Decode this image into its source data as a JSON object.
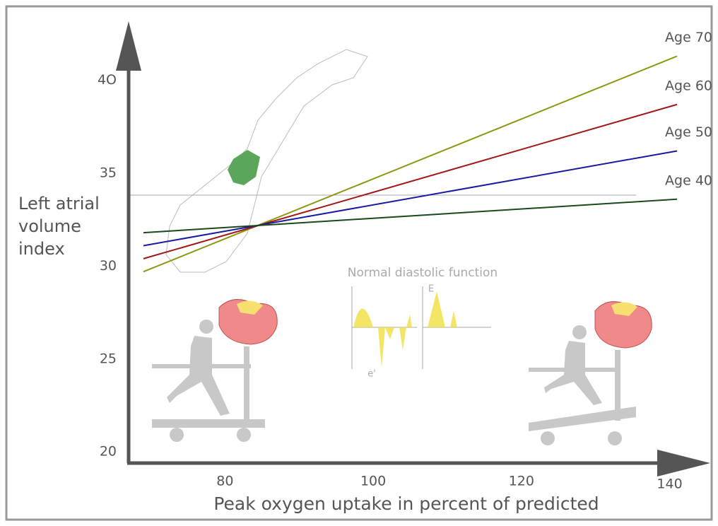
{
  "chart_data": {
    "type": "line",
    "x_label": "Peak oxygen uptake in percent of predicted",
    "y_label": "Left atrial volume index",
    "annotations": [
      "Normal diastolic function",
      "E",
      "e'"
    ],
    "x": [
      69,
      141
    ],
    "series": [
      {
        "name": "Age 70",
        "color": "#8a9a10",
        "values": [
          29.7,
          41.3
        ]
      },
      {
        "name": "Age 60",
        "color": "#a01818",
        "values": [
          30.4,
          38.7
        ]
      },
      {
        "name": "Age 50",
        "color": "#1a1aa0",
        "values": [
          31.1,
          36.2
        ]
      },
      {
        "name": "Age 40",
        "color": "#1a4a1a",
        "values": [
          31.8,
          33.6
        ]
      }
    ],
    "xlim": [
      67,
      145
    ],
    "ylim": [
      19.4,
      42.8
    ],
    "xticks": [
      80,
      100,
      120,
      140
    ],
    "yticks": [
      20,
      25,
      30,
      35,
      {
        "value": 40,
        "label": "4O"
      }
    ]
  }
}
